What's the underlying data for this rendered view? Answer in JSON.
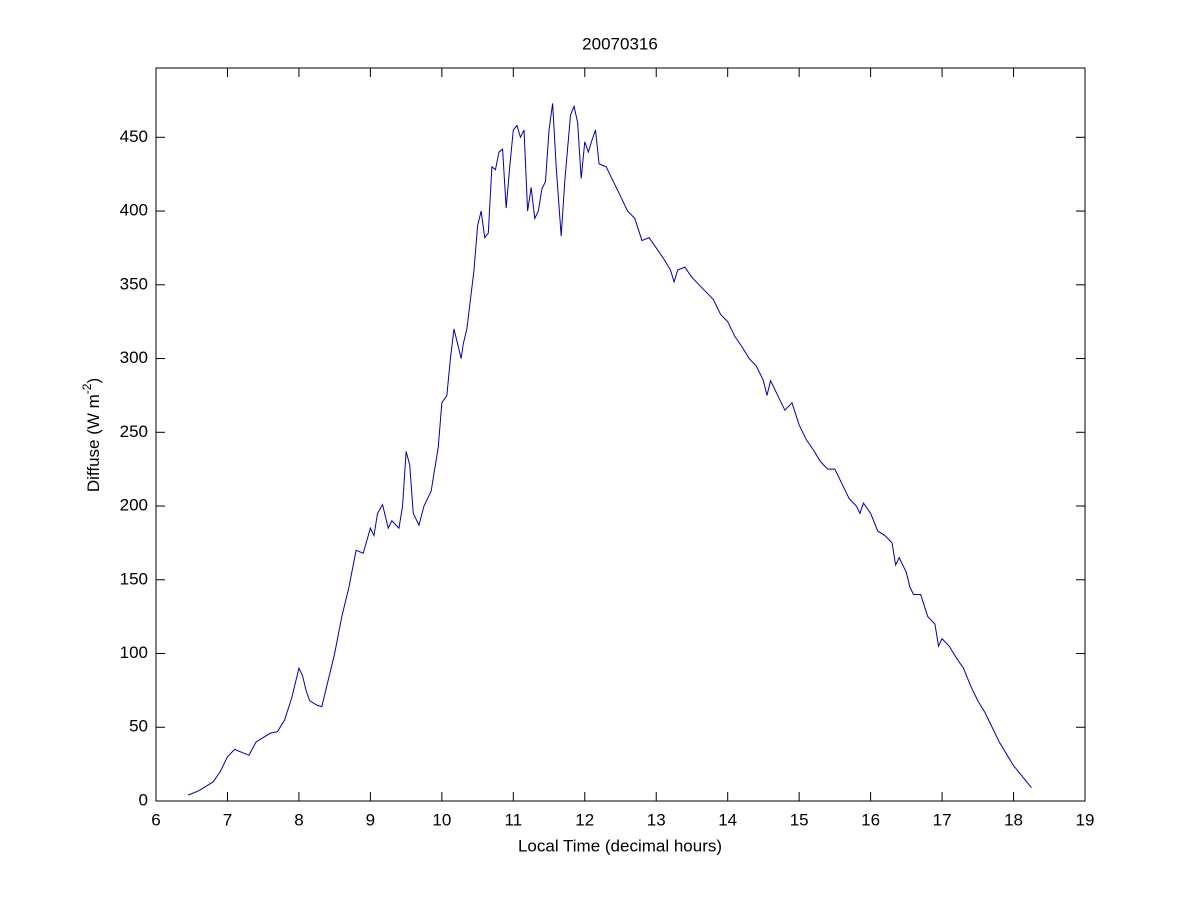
{
  "chart_data": {
    "type": "line",
    "title": "20070316",
    "x_label": "Local Time (decimal hours)",
    "y_label": [
      "Diffuse (W m",
      "-2",
      ")"
    ],
    "xlim": [
      6,
      19
    ],
    "xticks": [
      6,
      7,
      8,
      9,
      10,
      11,
      12,
      13,
      14,
      15,
      16,
      17,
      18,
      19
    ],
    "ylim": [
      0,
      497
    ],
    "yticks": [
      0,
      50,
      100,
      150,
      200,
      250,
      300,
      350,
      400,
      450
    ],
    "box": true,
    "series": [
      {
        "color": "#0000aa",
        "x": [
          6.45,
          6.6,
          6.8,
          6.9,
          7.0,
          7.1,
          7.2,
          7.3,
          7.4,
          7.5,
          7.6,
          7.7,
          7.8,
          7.9,
          7.95,
          8.0,
          8.05,
          8.1,
          8.15,
          8.25,
          8.32,
          8.4,
          8.5,
          8.6,
          8.7,
          8.8,
          8.9,
          9.0,
          9.05,
          9.1,
          9.17,
          9.25,
          9.3,
          9.4,
          9.45,
          9.5,
          9.55,
          9.6,
          9.68,
          9.75,
          9.85,
          9.95,
          10.0,
          10.07,
          10.12,
          10.17,
          10.22,
          10.27,
          10.3,
          10.35,
          10.45,
          10.5,
          10.55,
          10.6,
          10.65,
          10.7,
          10.75,
          10.8,
          10.85,
          10.9,
          10.95,
          11.0,
          11.05,
          11.1,
          11.15,
          11.2,
          11.25,
          11.3,
          11.35,
          11.4,
          11.45,
          11.5,
          11.55,
          11.6,
          11.67,
          11.72,
          11.8,
          11.85,
          11.9,
          11.95,
          12.0,
          12.05,
          12.1,
          12.15,
          12.2,
          12.3,
          12.4,
          12.5,
          12.6,
          12.7,
          12.8,
          12.9,
          13.0,
          13.1,
          13.2,
          13.25,
          13.3,
          13.4,
          13.5,
          13.6,
          13.7,
          13.8,
          13.9,
          14.0,
          14.1,
          14.2,
          14.3,
          14.4,
          14.5,
          14.55,
          14.6,
          14.7,
          14.8,
          14.9,
          15.0,
          15.1,
          15.2,
          15.3,
          15.4,
          15.5,
          15.6,
          15.7,
          15.8,
          15.85,
          15.9,
          16.0,
          16.1,
          16.2,
          16.3,
          16.35,
          16.4,
          16.5,
          16.55,
          16.6,
          16.7,
          16.8,
          16.9,
          16.95,
          17.0,
          17.1,
          17.2,
          17.3,
          17.4,
          17.5,
          17.6,
          17.7,
          17.8,
          17.9,
          18.0,
          18.1,
          18.2,
          18.25
        ],
        "values": [
          4,
          7,
          13,
          20,
          30,
          35,
          33,
          31,
          40,
          43,
          46,
          47,
          55,
          70,
          80,
          90,
          85,
          75,
          68,
          65,
          64,
          80,
          100,
          125,
          145,
          170,
          168,
          185,
          180,
          195,
          201,
          185,
          190,
          185,
          200,
          237,
          228,
          195,
          187,
          200,
          210,
          240,
          270,
          275,
          300,
          320,
          310,
          300,
          310,
          320,
          360,
          390,
          400,
          382,
          385,
          430,
          428,
          440,
          442,
          402,
          430,
          455,
          458,
          450,
          455,
          400,
          416,
          395,
          400,
          415,
          420,
          455,
          473,
          430,
          383,
          420,
          465,
          471,
          460,
          422,
          447,
          440,
          448,
          455,
          432,
          430,
          420,
          410,
          400,
          395,
          380,
          382,
          375,
          368,
          360,
          352,
          360,
          362,
          355,
          350,
          345,
          340,
          330,
          325,
          315,
          308,
          300,
          295,
          285,
          275,
          285,
          275,
          265,
          270,
          255,
          245,
          238,
          230,
          225,
          225,
          215,
          205,
          200,
          195,
          202,
          195,
          183,
          180,
          175,
          160,
          165,
          155,
          145,
          140,
          140,
          125,
          120,
          105,
          110,
          105,
          97,
          90,
          78,
          68,
          60,
          50,
          40,
          32,
          24,
          18,
          12,
          9
        ]
      }
    ]
  }
}
